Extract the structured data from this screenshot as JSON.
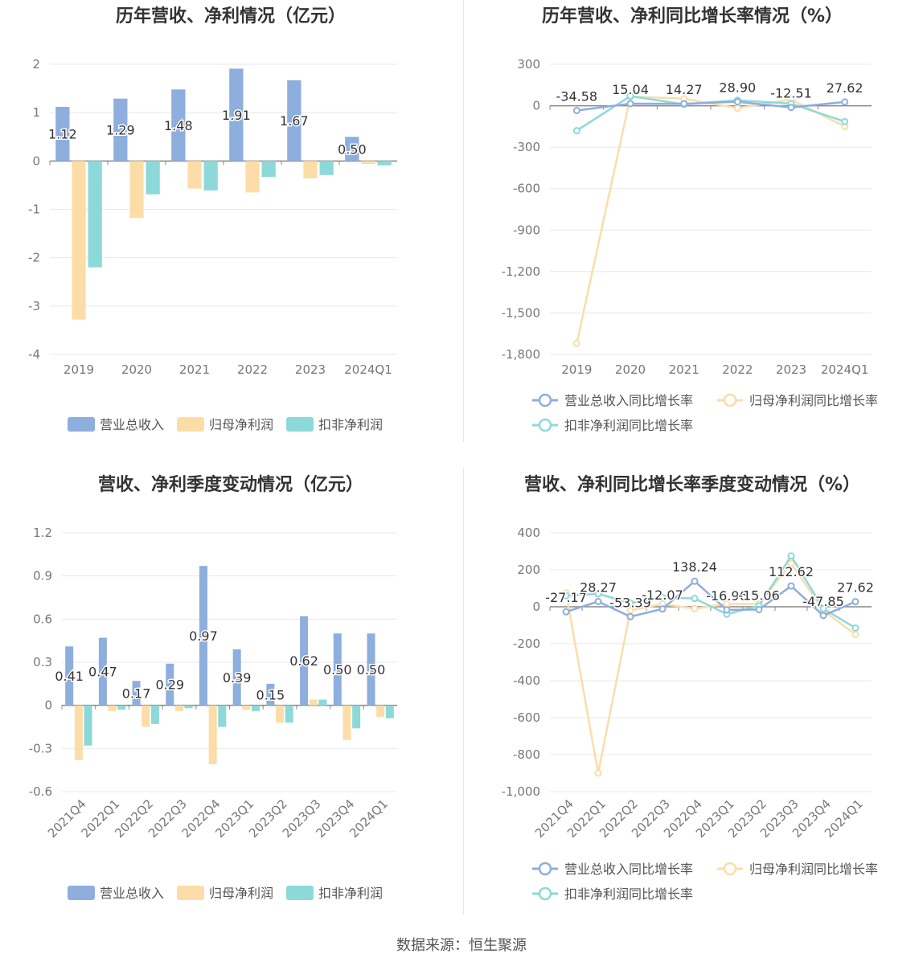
{
  "source": "数据来源：恒生聚源",
  "colors": {
    "revenue": "#8eaedd",
    "net_profit": "#fcdda8",
    "deducted_profit": "#8dd9d9",
    "axis": "#999999",
    "grid": "#e8e8ee"
  },
  "chart_data": [
    {
      "type": "bar",
      "title": "历年营收、净利情况（亿元）",
      "categories": [
        "2019",
        "2020",
        "2021",
        "2022",
        "2023",
        "2024Q1"
      ],
      "ylim": [
        -4,
        2
      ],
      "yticks": [
        "2",
        "1",
        "0",
        "-1",
        "-2",
        "-3",
        "-4"
      ],
      "series": [
        {
          "name": "营业总收入",
          "values": [
            1.12,
            1.29,
            1.48,
            1.91,
            1.67,
            0.5
          ],
          "labels": [
            "1.12",
            "1.29",
            "1.48",
            "1.91",
            "1.67",
            "0.50"
          ]
        },
        {
          "name": "归母净利润",
          "values": [
            -3.28,
            -1.18,
            -0.57,
            -0.65,
            -0.36,
            -0.06
          ]
        },
        {
          "name": "扣非净利润",
          "values": [
            -2.2,
            -0.69,
            -0.61,
            -0.33,
            -0.29,
            -0.09
          ]
        }
      ],
      "legend": "bottom"
    },
    {
      "type": "line",
      "title": "历年营收、净利同比增长率情况（%）",
      "categories": [
        "2019",
        "2020",
        "2021",
        "2022",
        "2023",
        "2024Q1"
      ],
      "ylim": [
        -1800,
        300
      ],
      "yticks": [
        "300",
        "0",
        "-300",
        "-600",
        "-900",
        "-1,200",
        "-1,500",
        "-1,800"
      ],
      "series": [
        {
          "name": "营业总收入同比增长率",
          "values": [
            -34.58,
            15.04,
            14.27,
            28.9,
            -12.51,
            27.62
          ],
          "labels": [
            "-34.58",
            "15.04",
            "14.27",
            "28.90",
            "-12.51",
            "27.62"
          ]
        },
        {
          "name": "归母净利润同比增长率",
          "values": [
            -1720,
            65,
            52,
            -18,
            45,
            -150
          ]
        },
        {
          "name": "扣非净利润同比增长率",
          "values": [
            -180,
            70,
            10,
            40,
            15,
            -115
          ]
        }
      ],
      "legend": "bottom"
    },
    {
      "type": "bar",
      "title": "营收、净利季度变动情况（亿元）",
      "categories": [
        "2021Q4",
        "2022Q1",
        "2022Q2",
        "2022Q3",
        "2022Q4",
        "2023Q1",
        "2023Q2",
        "2023Q3",
        "2023Q4",
        "2024Q1"
      ],
      "ylim": [
        -0.6,
        1.2
      ],
      "yticks": [
        "1.2",
        "0.9",
        "0.6",
        "0.3",
        "0",
        "-0.3",
        "-0.6"
      ],
      "series": [
        {
          "name": "营业总收入",
          "values": [
            0.41,
            0.47,
            0.17,
            0.29,
            0.97,
            0.39,
            0.15,
            0.62,
            0.5,
            0.5
          ],
          "labels": [
            "0.41",
            "0.47",
            "0.17",
            "0.29",
            "0.97",
            "0.39",
            "0.15",
            "0.62",
            "0.50",
            "0.50"
          ]
        },
        {
          "name": "归母净利润",
          "values": [
            -0.38,
            -0.04,
            -0.15,
            -0.04,
            -0.41,
            -0.03,
            -0.12,
            0.04,
            -0.24,
            -0.08
          ]
        },
        {
          "name": "扣非净利润",
          "values": [
            -0.28,
            -0.03,
            -0.13,
            -0.02,
            -0.15,
            -0.04,
            -0.12,
            0.04,
            -0.16,
            -0.09
          ]
        }
      ],
      "legend": "bottom"
    },
    {
      "type": "line",
      "title": "营收、净利同比增长率季度变动情况（%）",
      "categories": [
        "2021Q4",
        "2022Q1",
        "2022Q2",
        "2022Q3",
        "2022Q4",
        "2023Q1",
        "2023Q2",
        "2023Q3",
        "2023Q4",
        "2024Q1"
      ],
      "ylim": [
        -1000,
        400
      ],
      "yticks": [
        "400",
        "200",
        "0",
        "-200",
        "-400",
        "-600",
        "-800",
        "-1,000"
      ],
      "series": [
        {
          "name": "营业总收入同比增长率",
          "values": [
            -27.17,
            28.27,
            -53.39,
            -12.07,
            138.24,
            -16.96,
            -15.06,
            112.62,
            -47.85,
            27.62
          ],
          "labels": [
            "-27.17",
            "28.27",
            "-53.39",
            "-12.07",
            "138.24",
            "-16.96",
            "-15.06",
            "112.62",
            "-47.85",
            "27.62"
          ]
        },
        {
          "name": "归母净利润同比增长率",
          "values": [
            75,
            -900,
            -20,
            15,
            -10,
            15,
            15,
            235,
            -20,
            -150
          ]
        },
        {
          "name": "扣非净利润同比增长率",
          "values": [
            60,
            70,
            20,
            50,
            45,
            -40,
            5,
            275,
            -10,
            -115
          ]
        }
      ],
      "legend": "bottom"
    }
  ]
}
